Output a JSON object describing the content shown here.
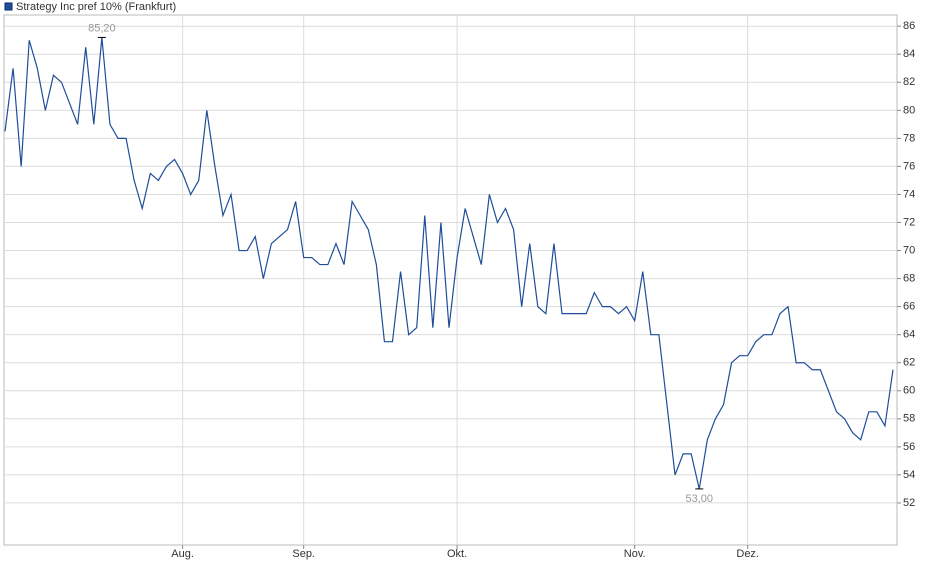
{
  "chart_data": {
    "type": "line",
    "categories": [
      null,
      null,
      null,
      null,
      null,
      null,
      null,
      null,
      null,
      null,
      null,
      null,
      null,
      null,
      null,
      null,
      null,
      null,
      null,
      null,
      null,
      null,
      "Aug.",
      null,
      null,
      null,
      null,
      null,
      null,
      null,
      null,
      null,
      null,
      null,
      null,
      null,
      null,
      "Sep.",
      null,
      null,
      null,
      null,
      null,
      null,
      null,
      null,
      null,
      null,
      null,
      null,
      null,
      null,
      null,
      null,
      null,
      null,
      "Okt.",
      null,
      null,
      null,
      null,
      null,
      null,
      null,
      null,
      null,
      null,
      null,
      null,
      null,
      null,
      null,
      null,
      null,
      null,
      null,
      null,
      null,
      "Nov.",
      null,
      null,
      null,
      null,
      null,
      null,
      null,
      null,
      null,
      null,
      null,
      null,
      null,
      "Dez.",
      null,
      null,
      null,
      null,
      null,
      null,
      null,
      null,
      null,
      null,
      null,
      null,
      null,
      null,
      null,
      null,
      null,
      null
    ],
    "series": [
      {
        "name": "Strategy Inc pref 10% (Frankfurt)",
        "color": "#1f4e99",
        "values": [
          78.5,
          83,
          76,
          85,
          83,
          80,
          82.5,
          82,
          80.5,
          79,
          84.5,
          79,
          85.2,
          79,
          78,
          78,
          75,
          73,
          75.5,
          75,
          76,
          76.5,
          75.5,
          74,
          75,
          80,
          76,
          72.5,
          74,
          70,
          70,
          71,
          68,
          70.5,
          71,
          71.5,
          73.5,
          69.5,
          69.5,
          69,
          69,
          70.5,
          69,
          73.5,
          72.5,
          71.5,
          69,
          63.5,
          63.5,
          68.5,
          64,
          64.5,
          72.5,
          64.5,
          72,
          64.5,
          69.5,
          73,
          71,
          69,
          74,
          72,
          73,
          71.5,
          66,
          70.5,
          66,
          65.5,
          70.5,
          65.5,
          65.5,
          65.5,
          65.5,
          67,
          66,
          66,
          65.5,
          66,
          65,
          68.5,
          64,
          64,
          59,
          54,
          55.5,
          55.5,
          53,
          56.5,
          58,
          59,
          62,
          62.5,
          62.5,
          63.5,
          64,
          64,
          65.5,
          66,
          62,
          62,
          61.5,
          61.5,
          60,
          58.5,
          58,
          57,
          56.5,
          58.5,
          58.5,
          57.5,
          61.5
        ]
      }
    ],
    "annotations": [
      {
        "label": "85,20",
        "value": 85.2
      },
      {
        "label": "53,00",
        "value": 53
      }
    ],
    "ylim": [
      49,
      86.8
    ],
    "yticks": [
      52,
      54,
      56,
      58,
      60,
      62,
      64,
      66,
      68,
      70,
      72,
      74,
      76,
      78,
      80,
      82,
      84,
      86
    ],
    "grid": true
  }
}
